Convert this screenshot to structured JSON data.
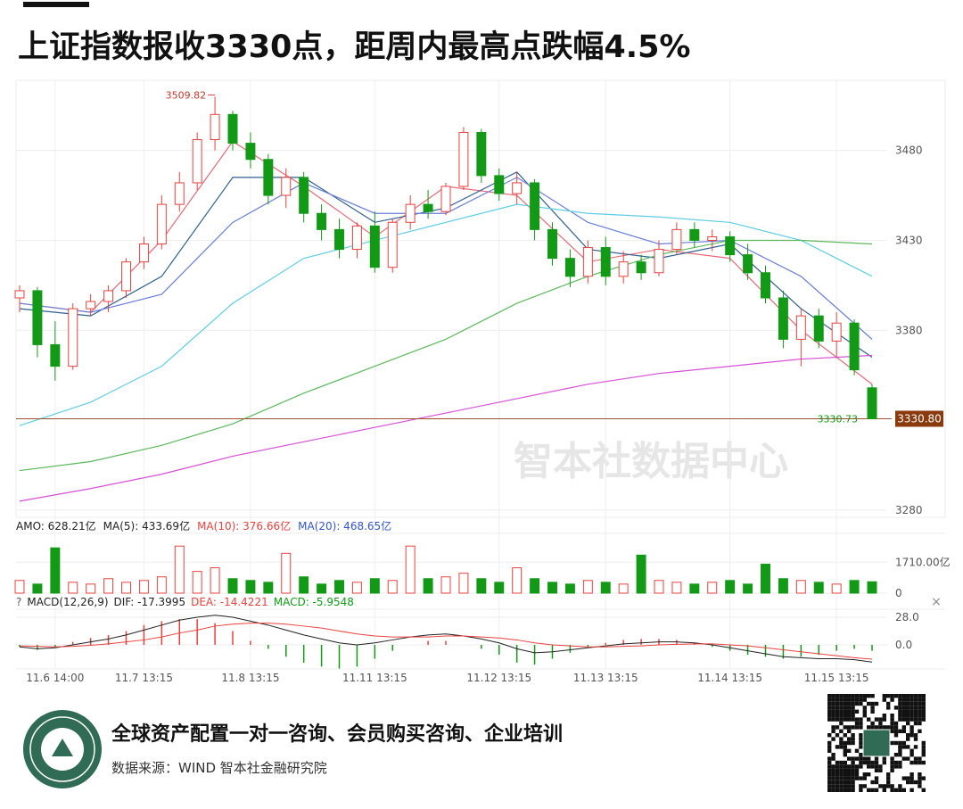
{
  "header": {
    "title": "上证指数报收3330点，距周内最高点跌幅4.5%"
  },
  "chart_data": {
    "type": "candlestick",
    "categories": [
      null,
      null,
      "11.6 14:00",
      null,
      null,
      null,
      null,
      "11.7 13:15",
      null,
      null,
      null,
      null,
      null,
      "11.8 13:15",
      null,
      null,
      null,
      null,
      null,
      null,
      "11.11 13:15",
      null,
      null,
      null,
      null,
      null,
      null,
      "11.12 13:15",
      null,
      null,
      null,
      null,
      null,
      "11.13 13:15",
      null,
      null,
      null,
      null,
      null,
      null,
      "11.14 13:15",
      null,
      null,
      null,
      null,
      null,
      "11.15 13:15",
      null,
      null
    ],
    "ohlc": [
      [
        3398,
        3405,
        3390,
        3402
      ],
      [
        3402,
        3404,
        3365,
        3372
      ],
      [
        3372,
        3385,
        3352,
        3360
      ],
      [
        3360,
        3395,
        3358,
        3392
      ],
      [
        3392,
        3400,
        3388,
        3396
      ],
      [
        3396,
        3405,
        3390,
        3402
      ],
      [
        3402,
        3420,
        3398,
        3418
      ],
      [
        3418,
        3432,
        3414,
        3428
      ],
      [
        3428,
        3455,
        3425,
        3450
      ],
      [
        3450,
        3468,
        3446,
        3462
      ],
      [
        3462,
        3490,
        3458,
        3486
      ],
      [
        3486,
        3509.82,
        3480,
        3500
      ],
      [
        3500,
        3502,
        3480,
        3484
      ],
      [
        3484,
        3490,
        3470,
        3475
      ],
      [
        3475,
        3478,
        3450,
        3455
      ],
      [
        3455,
        3470,
        3448,
        3465
      ],
      [
        3465,
        3468,
        3440,
        3445
      ],
      [
        3445,
        3450,
        3430,
        3436
      ],
      [
        3436,
        3442,
        3420,
        3425
      ],
      [
        3425,
        3440,
        3420,
        3438
      ],
      [
        3438,
        3446,
        3412,
        3415
      ],
      [
        3415,
        3442,
        3412,
        3440
      ],
      [
        3440,
        3455,
        3436,
        3450
      ],
      [
        3450,
        3458,
        3442,
        3446
      ],
      [
        3446,
        3462,
        3444,
        3460
      ],
      [
        3460,
        3493,
        3458,
        3490
      ],
      [
        3490,
        3492,
        3462,
        3466
      ],
      [
        3466,
        3470,
        3452,
        3456
      ],
      [
        3456,
        3468,
        3450,
        3462
      ],
      [
        3462,
        3464,
        3430,
        3436
      ],
      [
        3436,
        3440,
        3416,
        3420
      ],
      [
        3420,
        3425,
        3404,
        3410
      ],
      [
        3410,
        3430,
        3406,
        3426
      ],
      [
        3426,
        3432,
        3405,
        3410
      ],
      [
        3410,
        3424,
        3406,
        3418
      ],
      [
        3418,
        3422,
        3408,
        3412
      ],
      [
        3412,
        3430,
        3410,
        3425
      ],
      [
        3425,
        3440,
        3422,
        3436
      ],
      [
        3436,
        3440,
        3426,
        3430
      ],
      [
        3430,
        3436,
        3424,
        3432
      ],
      [
        3432,
        3435,
        3418,
        3422
      ],
      [
        3422,
        3428,
        3408,
        3412
      ],
      [
        3412,
        3416,
        3395,
        3398
      ],
      [
        3398,
        3402,
        3370,
        3375
      ],
      [
        3375,
        3392,
        3360,
        3388
      ],
      [
        3388,
        3392,
        3370,
        3374
      ],
      [
        3374,
        3390,
        3365,
        3384
      ],
      [
        3384,
        3386,
        3355,
        3358
      ],
      [
        3348,
        3350,
        3330.73,
        3330.8
      ]
    ],
    "up_color": "#e8423f",
    "down_color": "#129a17",
    "ylim": [
      3276,
      3519
    ],
    "yticks": [
      3280,
      3380,
      3430,
      3480
    ],
    "last_label": "3330.80",
    "ma_x": [
      0,
      4,
      8,
      12,
      16,
      20,
      24,
      28,
      32,
      36,
      40,
      44,
      48
    ],
    "ma_lines": [
      {
        "color": "#e86a78",
        "values": [
          3395,
          3390,
          3430,
          3485,
          3460,
          3432,
          3460,
          3455,
          3418,
          3425,
          3420,
          3380,
          3350
        ]
      },
      {
        "color": "#2f5f8f",
        "values": [
          3392,
          3388,
          3410,
          3465,
          3465,
          3440,
          3448,
          3468,
          3425,
          3420,
          3428,
          3392,
          3365
        ]
      },
      {
        "color": "#6a7fd8",
        "values": [
          3395,
          3390,
          3400,
          3440,
          3462,
          3445,
          3445,
          3465,
          3440,
          3428,
          3430,
          3410,
          3375
        ]
      },
      {
        "color": "#5fcde4",
        "values": [
          3327,
          3340,
          3360,
          3395,
          3420,
          3430,
          3440,
          3450,
          3445,
          3443,
          3440,
          3430,
          3410
        ]
      },
      {
        "color": "#5cb85c",
        "values": [
          3302,
          3307,
          3316,
          3328,
          3345,
          3360,
          3375,
          3395,
          3410,
          3422,
          3430,
          3430,
          3428
        ]
      },
      {
        "color": "#d650d6",
        "values": [
          3285,
          3292,
          3300,
          3310,
          3318,
          3326,
          3334,
          3342,
          3350,
          3356,
          3360,
          3364,
          3366
        ]
      }
    ],
    "watermark": "智本社数据中心",
    "volume": {
      "legend": [
        {
          "text": "AMO: 628.21亿",
          "color": "#222"
        },
        {
          "text": "MA(5): 433.69亿",
          "color": "#222"
        },
        {
          "text": "MA(10): 376.66亿",
          "color": "#e8423f"
        },
        {
          "text": "MA(20): 468.65亿",
          "color": "#3355cc"
        }
      ],
      "values": [
        700,
        500,
        2500,
        600,
        500,
        800,
        600,
        700,
        900,
        2600,
        1200,
        1400,
        800,
        700,
        600,
        2200,
        900,
        500,
        700,
        600,
        800,
        700,
        2600,
        800,
        900,
        1100,
        800,
        600,
        1400,
        800,
        600,
        500,
        700,
        600,
        500,
        2100,
        700,
        600,
        500,
        600,
        700,
        500,
        1600,
        800,
        700,
        600,
        500,
        700,
        628.21
      ],
      "ylim": [
        0,
        3300
      ],
      "yticks": [
        {
          "value": 1710,
          "label": "1710.00亿"
        },
        0
      ]
    },
    "macd": {
      "legend": [
        {
          "text": "?",
          "color": "#555"
        },
        {
          "text": "MACD(12,26,9)",
          "color": "#222"
        },
        {
          "text": "DIF: -17.3995",
          "color": "#222"
        },
        {
          "text": "DEA: -14.4221",
          "color": "#e8423f"
        },
        {
          "text": "MACD: -5.9548",
          "color": "#129a17"
        }
      ],
      "dif": [
        -2,
        -4,
        -3,
        0,
        3,
        6,
        10,
        15,
        20,
        25,
        28,
        30,
        28,
        24,
        20,
        15,
        10,
        6,
        2,
        0,
        2,
        5,
        8,
        10,
        11,
        9,
        6,
        2,
        -4,
        -8,
        -7,
        -5,
        -3,
        -1,
        1,
        2,
        3,
        3,
        2,
        0,
        -3,
        -6,
        -9,
        -12,
        -13,
        -14,
        -14,
        -15,
        -17.3995
      ],
      "dea": [
        -1,
        -1.5,
        -2,
        -1.5,
        -0.5,
        1,
        3,
        5,
        8,
        12,
        15,
        19,
        21,
        22,
        22,
        21,
        19,
        17,
        14,
        11,
        9,
        8,
        8,
        8,
        9,
        9,
        8,
        7,
        5,
        2,
        0,
        -1,
        -2,
        -2,
        -1.5,
        -1,
        0,
        0.5,
        1,
        1,
        0,
        -1,
        -3,
        -5,
        -7,
        -9,
        -11,
        -13,
        -14.4221
      ],
      "hist": [
        -2,
        -5,
        -2,
        3,
        7,
        10,
        14,
        20,
        24,
        26,
        26,
        22,
        14,
        4,
        -4,
        -12,
        -18,
        -22,
        -24,
        -22,
        -14,
        -6,
        0,
        4,
        4,
        0,
        -4,
        -10,
        -18,
        -20,
        -14,
        -8,
        -2,
        2,
        5,
        6,
        6,
        5,
        2,
        -2,
        -6,
        -10,
        -12,
        -14,
        -12,
        -10,
        -6,
        -4,
        -5.9548
      ],
      "dif_color": "#222",
      "dea_color": "#e8423f",
      "ylim": [
        -24.4,
        36.1
      ],
      "yticks": [
        {
          "value": 28,
          "label": "28.0"
        },
        {
          "value": 0,
          "label": "0.0"
        }
      ]
    }
  },
  "footer": {
    "slogan": "全球资产配置一对一咨询、会员购买咨询、企业培训",
    "source": "数据来源：WIND 智本社金融研究院"
  }
}
